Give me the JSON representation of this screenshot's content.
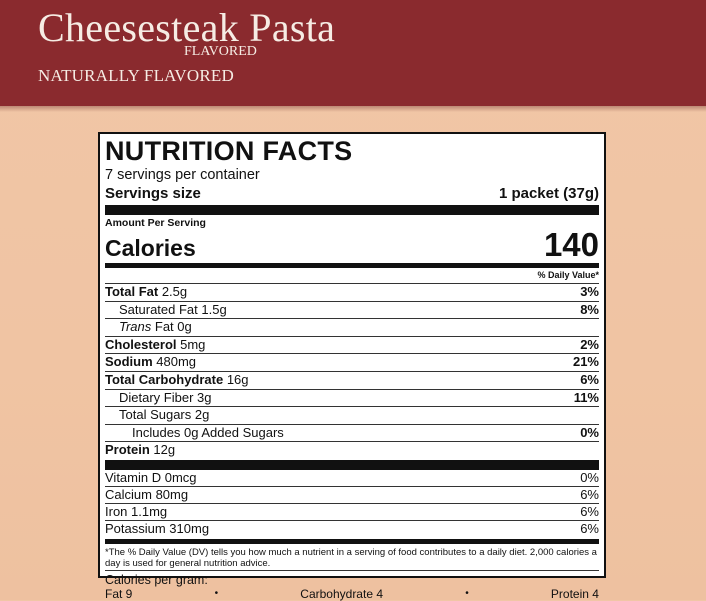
{
  "header": {
    "product_name": "Cheesesteak Pasta",
    "flavored_label": "FLAVORED",
    "naturally_flavored": "NATURALLY FLAVORED"
  },
  "label": {
    "title": "NUTRITION FACTS",
    "servings_per_container": "7 servings per container",
    "servings_size_label": "Servings size",
    "servings_size_value": "1 packet (37g)",
    "amount_per_serving": "Amount Per Serving",
    "calories_label": "Calories",
    "calories_value": "140",
    "dv_header": "% Daily Value*",
    "nutrients": [
      {
        "name": "Total Fat",
        "amount": " 2.5g",
        "dv": "3%"
      },
      {
        "name": "Saturated Fat 1.5g",
        "dv": "8%"
      },
      {
        "name": "Trans",
        "rest": " Fat 0g"
      },
      {
        "name": "Cholesterol",
        "amount": " 5mg",
        "dv": "2%"
      },
      {
        "name": "Sodium",
        "amount": " 480mg",
        "dv": "21%"
      },
      {
        "name": "Total Carbohydrate",
        "amount": " 16g",
        "dv": "6%"
      },
      {
        "name": "Dietary Fiber 3g",
        "dv": "11%"
      },
      {
        "name": "Total Sugars 2g"
      },
      {
        "name": "Includes 0g Added Sugars",
        "dv": "0%"
      },
      {
        "name": "Protein",
        "amount": " 12g"
      }
    ],
    "vitamins": [
      {
        "name": "Vitamin D 0mcg",
        "dv": "0%"
      },
      {
        "name": "Calcium 80mg",
        "dv": "6%"
      },
      {
        "name": "Iron 1.1mg",
        "dv": "6%"
      },
      {
        "name": "Potassium 310mg",
        "dv": "6%"
      }
    ],
    "footnote": "*The % Daily Value (DV) tells you how much a nutrient in a serving of food contributes to a daily diet. 2,000 calories a day is used for general nutrition advice.",
    "calories_per_gram": "Calories per gram:",
    "per_gram": {
      "fat": "Fat 9",
      "carb": "Carbohydrate 4",
      "protein": "Protein 4",
      "bullet": "•"
    }
  },
  "colors": {
    "banner": "#8a2a2e",
    "background": "#f1c6a6"
  }
}
